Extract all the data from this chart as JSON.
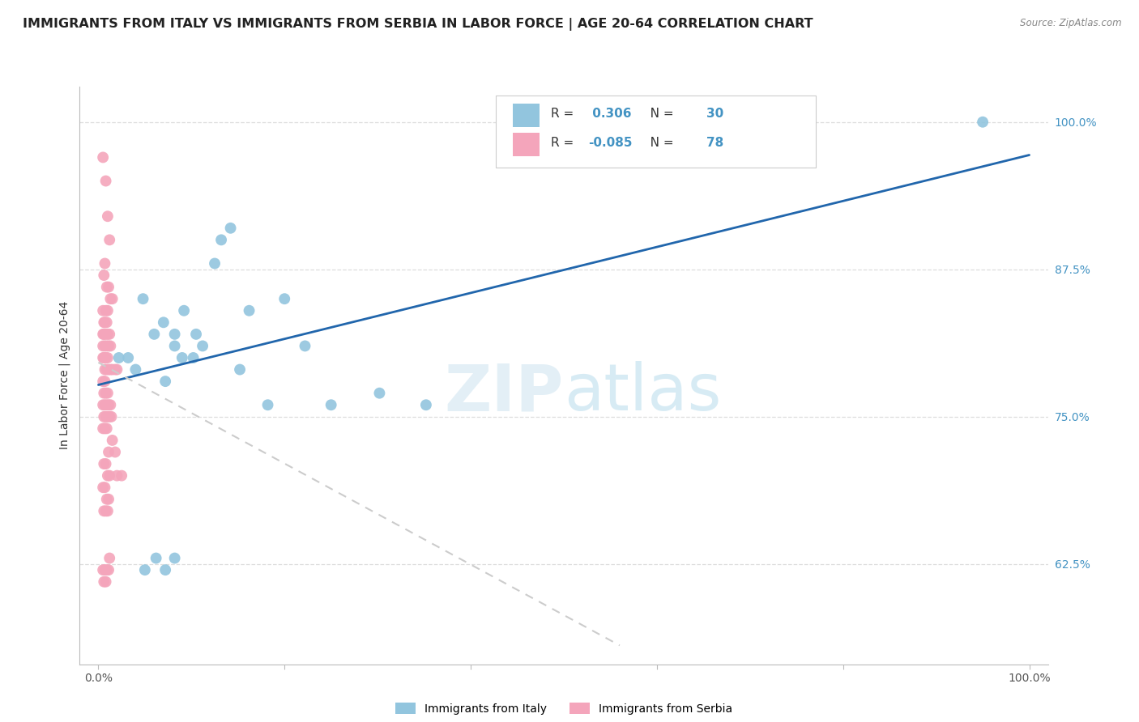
{
  "title": "IMMIGRANTS FROM ITALY VS IMMIGRANTS FROM SERBIA IN LABOR FORCE | AGE 20-64 CORRELATION CHART",
  "source": "Source: ZipAtlas.com",
  "ylabel": "In Labor Force | Age 20-64",
  "xlim": [
    -0.02,
    1.02
  ],
  "ylim": [
    0.54,
    1.03
  ],
  "ytick_positions": [
    0.625,
    0.75,
    0.875,
    1.0
  ],
  "ytick_labels": [
    "62.5%",
    "75.0%",
    "87.5%",
    "100.0%"
  ],
  "watermark_zip": "ZIP",
  "watermark_atlas": "atlas",
  "legend_italy_label": "Immigrants from Italy",
  "legend_serbia_label": "Immigrants from Serbia",
  "italy_R": "0.306",
  "italy_N": "30",
  "serbia_R": "-0.085",
  "serbia_N": "78",
  "italy_color": "#92c5de",
  "serbia_color": "#f4a5bb",
  "italy_trend_color": "#2166ac",
  "serbia_trend_color": "#cccccc",
  "italy_scatter_x": [
    0.022,
    0.048,
    0.07,
    0.082,
    0.04,
    0.105,
    0.125,
    0.142,
    0.06,
    0.092,
    0.112,
    0.152,
    0.2,
    0.25,
    0.032,
    0.132,
    0.182,
    0.222,
    0.072,
    0.162,
    0.082,
    0.102,
    0.302,
    0.352,
    0.082,
    0.062,
    0.05,
    0.072,
    0.09,
    0.95
  ],
  "italy_scatter_y": [
    0.8,
    0.85,
    0.83,
    0.82,
    0.79,
    0.82,
    0.88,
    0.91,
    0.82,
    0.84,
    0.81,
    0.79,
    0.85,
    0.76,
    0.8,
    0.9,
    0.76,
    0.81,
    0.78,
    0.84,
    0.81,
    0.8,
    0.77,
    0.76,
    0.63,
    0.63,
    0.62,
    0.62,
    0.8,
    1.0
  ],
  "serbia_scatter_x": [
    0.005,
    0.008,
    0.01,
    0.012,
    0.007,
    0.006,
    0.009,
    0.011,
    0.013,
    0.015,
    0.005,
    0.008,
    0.01,
    0.006,
    0.007,
    0.009,
    0.005,
    0.006,
    0.008,
    0.01,
    0.012,
    0.005,
    0.007,
    0.009,
    0.011,
    0.013,
    0.006,
    0.008,
    0.01,
    0.005,
    0.007,
    0.009,
    0.011,
    0.013,
    0.015,
    0.018,
    0.02,
    0.005,
    0.007,
    0.006,
    0.008,
    0.01,
    0.005,
    0.007,
    0.009,
    0.011,
    0.013,
    0.006,
    0.008,
    0.01,
    0.012,
    0.014,
    0.005,
    0.007,
    0.009,
    0.011,
    0.006,
    0.008,
    0.01,
    0.012,
    0.02,
    0.025,
    0.005,
    0.007,
    0.009,
    0.011,
    0.006,
    0.008,
    0.01,
    0.012,
    0.005,
    0.007,
    0.009,
    0.011,
    0.006,
    0.008,
    0.015,
    0.018
  ],
  "serbia_scatter_y": [
    0.97,
    0.95,
    0.92,
    0.9,
    0.88,
    0.87,
    0.86,
    0.86,
    0.85,
    0.85,
    0.84,
    0.84,
    0.84,
    0.83,
    0.83,
    0.83,
    0.82,
    0.82,
    0.82,
    0.82,
    0.82,
    0.81,
    0.81,
    0.81,
    0.81,
    0.81,
    0.8,
    0.8,
    0.8,
    0.8,
    0.79,
    0.79,
    0.79,
    0.79,
    0.79,
    0.79,
    0.79,
    0.78,
    0.78,
    0.77,
    0.77,
    0.77,
    0.76,
    0.76,
    0.76,
    0.76,
    0.76,
    0.75,
    0.75,
    0.75,
    0.75,
    0.75,
    0.74,
    0.74,
    0.74,
    0.72,
    0.71,
    0.71,
    0.7,
    0.7,
    0.7,
    0.7,
    0.69,
    0.69,
    0.68,
    0.68,
    0.67,
    0.67,
    0.67,
    0.63,
    0.62,
    0.62,
    0.62,
    0.62,
    0.61,
    0.61,
    0.73,
    0.72
  ],
  "italy_trend_x": [
    0.0,
    1.0
  ],
  "italy_trend_y": [
    0.777,
    0.972
  ],
  "serbia_trend_x": [
    0.0,
    0.56
  ],
  "serbia_trend_y": [
    0.796,
    0.556
  ],
  "background_color": "#ffffff",
  "grid_color": "#dddddd",
  "title_fontsize": 11.5,
  "axis_label_fontsize": 10,
  "tick_fontsize": 10,
  "legend_fontsize": 10,
  "tick_color": "#4393c3",
  "source_color": "#888888"
}
